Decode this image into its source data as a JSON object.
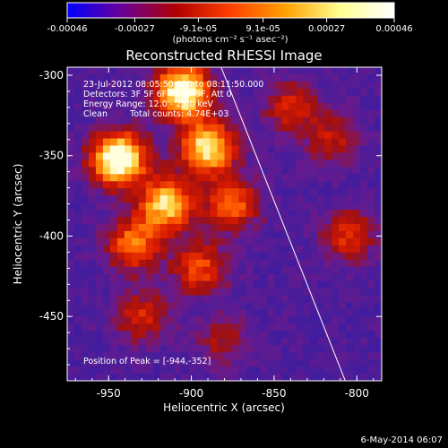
{
  "chart_data": {
    "type": "heatmap",
    "title": "Reconstructed RHESSI Image",
    "xlabel": "Heliocentric X (arcsec)",
    "ylabel": "Heliocentric Y (arcsec)",
    "xlim": [
      -975,
      -785
    ],
    "ylim": [
      -490,
      -295
    ],
    "x_ticks": [
      -950,
      -900,
      -850,
      -800
    ],
    "x_tick_labels": [
      "-950",
      "-900",
      "-850",
      "-800"
    ],
    "y_ticks": [
      -300,
      -350,
      -400,
      -450
    ],
    "y_tick_labels": [
      "-300",
      "-350",
      "-400",
      "-450"
    ],
    "colorbar": {
      "range": [
        -0.00046,
        0.00046
      ],
      "tick_values": [
        -0.00046,
        -0.00027,
        -9.1e-05,
        9.1e-05,
        0.00027,
        0.00046
      ],
      "tick_labels": [
        "-0.00046",
        "-0.00027",
        "-9.1e-05",
        "9.1e-05",
        "0.00027",
        "0.00046"
      ],
      "unit_label": "(photons cm⁻² s⁻¹ asec⁻²)",
      "colormap": [
        "#0000ff",
        "#6a0099",
        "#b00000",
        "#ff4000",
        "#ffa000",
        "#ffff90",
        "#ffffff"
      ]
    },
    "annotations": [
      "23-Jul-2012 08:05:50.000 to 08:11:50.000",
      "Detectors: 3F 5F 6F 7F 8F 9F, Att 0",
      "Energy Range: 12.0 - 25.0 keV",
      "Clean",
      "Total counts: 4.74E+03"
    ],
    "peak_label": "Position of Peak = [-944,-352]",
    "peak": [
      -944,
      -352
    ],
    "limb_line": [
      [
        -882,
        -295
      ],
      [
        -807,
        -490
      ]
    ],
    "sources": [
      {
        "x": -944,
        "y": -352,
        "intensity": 1.0
      },
      {
        "x": -905,
        "y": -310,
        "intensity": 0.95
      },
      {
        "x": -890,
        "y": -345,
        "intensity": 0.8
      },
      {
        "x": -915,
        "y": -380,
        "intensity": 0.75
      },
      {
        "x": -935,
        "y": -405,
        "intensity": 0.55
      },
      {
        "x": -895,
        "y": -420,
        "intensity": 0.45
      },
      {
        "x": -875,
        "y": -380,
        "intensity": 0.5
      },
      {
        "x": -840,
        "y": -320,
        "intensity": 0.35
      },
      {
        "x": -805,
        "y": -400,
        "intensity": 0.4
      },
      {
        "x": -815,
        "y": -340,
        "intensity": 0.3
      },
      {
        "x": -930,
        "y": -450,
        "intensity": 0.35
      },
      {
        "x": -880,
        "y": -465,
        "intensity": 0.25
      }
    ]
  },
  "footer": {
    "timestamp": "6-May-2014 06:07"
  }
}
